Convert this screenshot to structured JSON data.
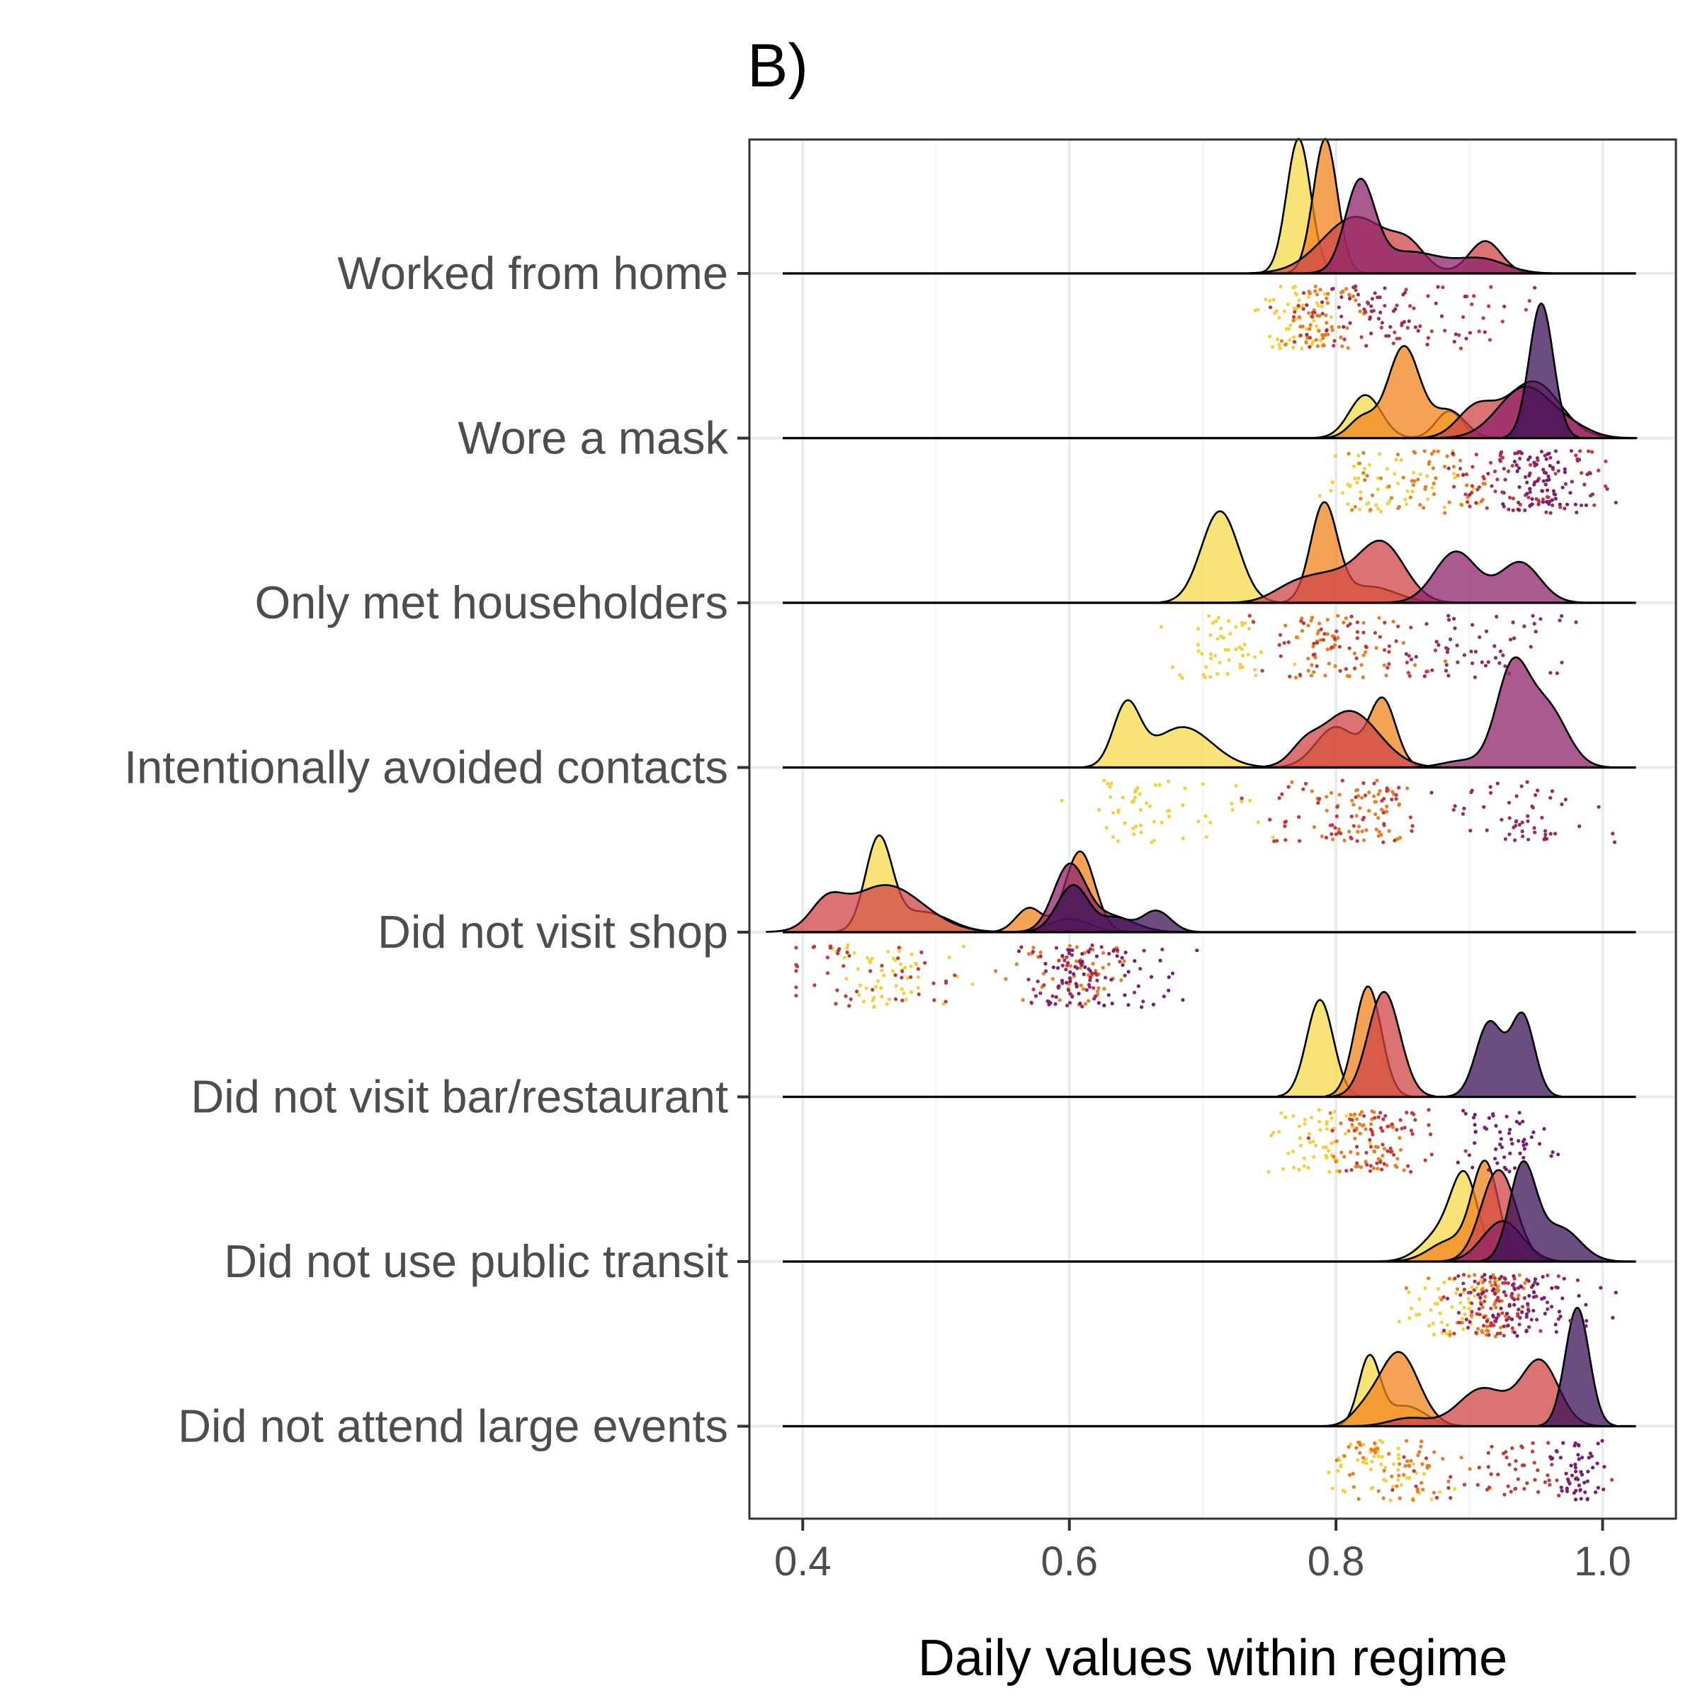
{
  "chart_data": {
    "type": "ridgeline",
    "title": "B)",
    "xlabel": "Daily values within regime",
    "ylabel": "",
    "xlim": [
      0.36,
      1.055
    ],
    "x_ticks": [
      0.4,
      0.6,
      0.8,
      1.0
    ],
    "x_tick_labels": [
      "0.4",
      "0.6",
      "0.8",
      "1.0"
    ],
    "grid": true,
    "legend": "none",
    "regime_colors": [
      "#F5D949",
      "#F0841C",
      "#CF4446",
      "#8D2369",
      "#3B1157"
    ],
    "categories": [
      "Worked from home",
      "Wore a mask",
      "Only met householders",
      "Intentionally avoided contacts",
      "Did not visit shop",
      "Did not visit bar/restaurant",
      "Did not use public transit",
      "Did not attend large events"
    ],
    "ridges": [
      {
        "category": "Worked from home",
        "series": [
          {
            "regime": 1,
            "components": [
              [
                0.772,
                0.009,
                1.0
              ]
            ]
          },
          {
            "regime": 2,
            "components": [
              [
                0.792,
                0.009,
                1.0
              ]
            ]
          },
          {
            "regime": 3,
            "components": [
              [
                0.815,
                0.025,
                0.42
              ],
              [
                0.855,
                0.012,
                0.15
              ],
              [
                0.912,
                0.012,
                0.24
              ]
            ]
          },
          {
            "regime": 4,
            "components": [
              [
                0.818,
                0.011,
                0.65
              ],
              [
                0.855,
                0.025,
                0.16
              ],
              [
                0.91,
                0.018,
                0.1
              ]
            ]
          }
        ]
      },
      {
        "category": "Wore a mask",
        "series": [
          {
            "regime": 1,
            "components": [
              [
                0.822,
                0.012,
                0.32
              ],
              [
                0.885,
                0.01,
                0.2
              ]
            ]
          },
          {
            "regime": 2,
            "components": [
              [
                0.851,
                0.012,
                0.68
              ],
              [
                0.82,
                0.01,
                0.15
              ],
              [
                0.885,
                0.012,
                0.2
              ]
            ]
          },
          {
            "regime": 3,
            "components": [
              [
                0.905,
                0.014,
                0.22
              ],
              [
                0.948,
                0.02,
                0.42
              ]
            ]
          },
          {
            "regime": 4,
            "components": [
              [
                0.942,
                0.02,
                0.38
              ],
              [
                0.978,
                0.015,
                0.06
              ]
            ]
          },
          {
            "regime": 5,
            "components": [
              [
                0.954,
                0.009,
                1.0
              ]
            ]
          }
        ]
      },
      {
        "category": "Only met householders",
        "series": [
          {
            "regime": 1,
            "components": [
              [
                0.713,
                0.014,
                0.68
              ]
            ]
          },
          {
            "regime": 2,
            "components": [
              [
                0.791,
                0.01,
                0.72
              ],
              [
                0.825,
                0.02,
                0.12
              ]
            ]
          },
          {
            "regime": 3,
            "components": [
              [
                0.835,
                0.017,
                0.42
              ],
              [
                0.795,
                0.022,
                0.2
              ],
              [
                0.765,
                0.015,
                0.07
              ]
            ]
          },
          {
            "regime": 4,
            "components": [
              [
                0.89,
                0.016,
                0.38
              ],
              [
                0.938,
                0.015,
                0.3
              ]
            ]
          }
        ]
      },
      {
        "category": "Intentionally avoided contacts",
        "series": [
          {
            "regime": 1,
            "components": [
              [
                0.643,
                0.01,
                0.45
              ],
              [
                0.685,
                0.022,
                0.3
              ]
            ]
          },
          {
            "regime": 2,
            "components": [
              [
                0.835,
                0.01,
                0.5
              ],
              [
                0.8,
                0.015,
                0.3
              ]
            ]
          },
          {
            "regime": 3,
            "components": [
              [
                0.81,
                0.022,
                0.42
              ],
              [
                0.776,
                0.01,
                0.1
              ]
            ]
          },
          {
            "regime": 4,
            "components": [
              [
                0.932,
                0.012,
                0.7
              ],
              [
                0.958,
                0.015,
                0.45
              ],
              [
                0.895,
                0.015,
                0.05
              ]
            ]
          }
        ]
      },
      {
        "category": "Did not visit shop",
        "series": [
          {
            "regime": 1,
            "components": [
              [
                0.457,
                0.01,
                0.68
              ],
              [
                0.49,
                0.02,
                0.15
              ]
            ]
          },
          {
            "regime": 2,
            "components": [
              [
                0.608,
                0.011,
                0.6
              ],
              [
                0.57,
                0.01,
                0.18
              ]
            ]
          },
          {
            "regime": 3,
            "components": [
              [
                0.462,
                0.028,
                0.35
              ],
              [
                0.418,
                0.012,
                0.18
              ],
              [
                0.6,
                0.015,
                0.1
              ]
            ]
          },
          {
            "regime": 4,
            "components": [
              [
                0.6,
                0.012,
                0.48
              ],
              [
                0.63,
                0.018,
                0.12
              ]
            ]
          },
          {
            "regime": 5,
            "components": [
              [
                0.603,
                0.012,
                0.35
              ],
              [
                0.665,
                0.011,
                0.16
              ],
              [
                0.635,
                0.01,
                0.1
              ]
            ]
          }
        ]
      },
      {
        "category": "Did not visit bar/restaurant",
        "series": [
          {
            "regime": 1,
            "components": [
              [
                0.788,
                0.01,
                0.72
              ]
            ]
          },
          {
            "regime": 2,
            "components": [
              [
                0.824,
                0.01,
                0.82
              ]
            ]
          },
          {
            "regime": 3,
            "components": [
              [
                0.836,
                0.012,
                0.78
              ]
            ]
          },
          {
            "regime": 5,
            "components": [
              [
                0.915,
                0.01,
                0.55
              ],
              [
                0.94,
                0.009,
                0.6
              ]
            ]
          }
        ]
      },
      {
        "category": "Did not use public transit",
        "series": [
          {
            "regime": 1,
            "components": [
              [
                0.897,
                0.01,
                0.55
              ],
              [
                0.88,
                0.015,
                0.22
              ]
            ]
          },
          {
            "regime": 2,
            "components": [
              [
                0.912,
                0.01,
                0.72
              ],
              [
                0.885,
                0.015,
                0.15
              ]
            ]
          },
          {
            "regime": 3,
            "components": [
              [
                0.922,
                0.013,
                0.68
              ]
            ]
          },
          {
            "regime": 4,
            "components": [
              [
                0.925,
                0.015,
                0.3
              ]
            ]
          },
          {
            "regime": 5,
            "components": [
              [
                0.94,
                0.01,
                0.7
              ],
              [
                0.968,
                0.015,
                0.25
              ]
            ]
          }
        ]
      },
      {
        "category": "Did not attend large events",
        "series": [
          {
            "regime": 1,
            "components": [
              [
                0.825,
                0.008,
                0.5
              ],
              [
                0.852,
                0.015,
                0.15
              ]
            ]
          },
          {
            "regime": 2,
            "components": [
              [
                0.847,
                0.015,
                0.55
              ],
              [
                0.82,
                0.01,
                0.08
              ]
            ]
          },
          {
            "regime": 3,
            "components": [
              [
                0.953,
                0.014,
                0.48
              ],
              [
                0.91,
                0.018,
                0.28
              ],
              [
                0.855,
                0.015,
                0.06
              ]
            ]
          },
          {
            "regime": 5,
            "components": [
              [
                0.981,
                0.009,
                0.88
              ]
            ]
          }
        ]
      }
    ]
  }
}
